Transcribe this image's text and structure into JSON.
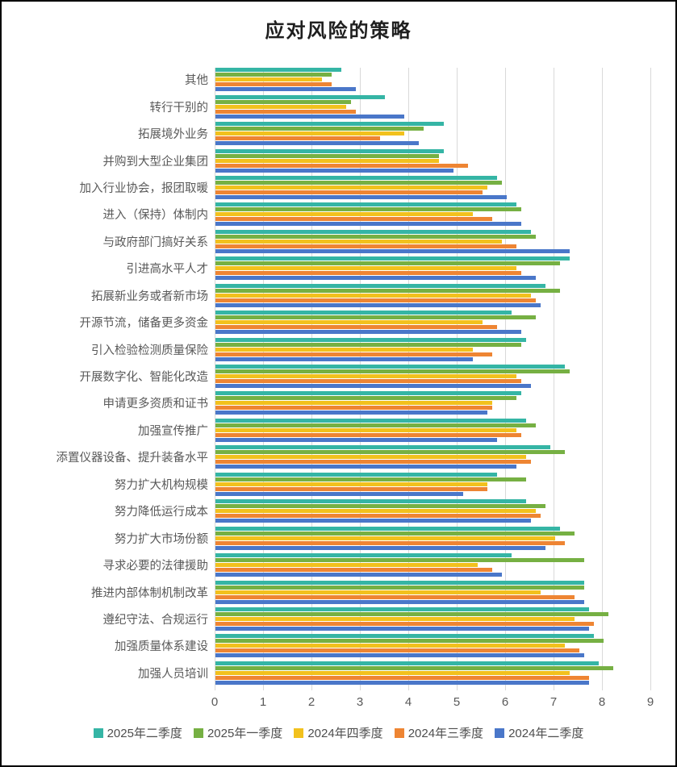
{
  "page": {
    "title": "应对风险的策略"
  },
  "chart_data": {
    "type": "bar",
    "orientation": "horizontal",
    "title": "应对风险的策略",
    "xlabel": "",
    "ylabel": "",
    "xlim": [
      0,
      9
    ],
    "x_ticks": [
      0,
      1,
      2,
      3,
      4,
      5,
      6,
      7,
      8,
      9
    ],
    "grid": true,
    "legend_position": "bottom",
    "categories_top_to_bottom": [
      "其他",
      "转行干别的",
      "拓展境外业务",
      "并购到大型企业集团",
      "加入行业协会，报团取暖",
      "进入（保持）体制内",
      "与政府部门搞好关系",
      "引进高水平人才",
      "拓展新业务或者新市场",
      "开源节流，储备更多资金",
      "引入检验检测质量保险",
      "开展数字化、智能化改造",
      "申请更多资质和证书",
      "加强宣传推广",
      "添置仪器设备、提升装备水平",
      "努力扩大机构规模",
      "努力降低运行成本",
      "努力扩大市场份额",
      "寻求必要的法律援助",
      "推进内部体制机制改革",
      "遵纪守法、合规运行",
      "加强质量体系建设",
      "加强人员培训"
    ],
    "series": [
      {
        "name": "2025年二季度",
        "color": "#35B5A5",
        "values": [
          2.6,
          3.5,
          4.7,
          4.7,
          5.8,
          6.2,
          6.5,
          7.3,
          6.8,
          6.1,
          6.4,
          7.2,
          6.3,
          6.4,
          6.9,
          5.8,
          6.4,
          7.1,
          6.1,
          7.6,
          7.7,
          7.8,
          7.9
        ]
      },
      {
        "name": "2025年一季度",
        "color": "#76B043",
        "values": [
          2.4,
          2.8,
          4.3,
          4.6,
          5.9,
          6.3,
          6.6,
          7.1,
          7.1,
          6.6,
          6.3,
          7.3,
          6.2,
          6.6,
          7.2,
          6.4,
          6.8,
          7.4,
          7.6,
          7.6,
          8.1,
          8.0,
          8.2
        ]
      },
      {
        "name": "2024年四季度",
        "color": "#F2C11D",
        "values": [
          2.2,
          2.7,
          3.9,
          4.6,
          5.6,
          5.3,
          5.9,
          6.2,
          6.5,
          5.5,
          5.3,
          6.2,
          5.7,
          6.2,
          6.4,
          5.6,
          6.6,
          7.0,
          5.4,
          6.7,
          7.4,
          7.2,
          7.3
        ]
      },
      {
        "name": "2024年三季度",
        "color": "#EE8533",
        "values": [
          2.4,
          2.9,
          3.4,
          5.2,
          5.5,
          5.7,
          6.2,
          6.3,
          6.6,
          5.8,
          5.7,
          6.3,
          5.7,
          6.3,
          6.5,
          5.6,
          6.7,
          7.2,
          5.7,
          7.4,
          7.8,
          7.5,
          7.7
        ]
      },
      {
        "name": "2024年二季度",
        "color": "#4A77C9",
        "values": [
          2.9,
          3.9,
          4.2,
          4.9,
          6.0,
          6.3,
          7.3,
          6.6,
          6.7,
          6.3,
          5.3,
          6.5,
          5.6,
          5.8,
          6.2,
          5.1,
          6.5,
          6.8,
          5.9,
          7.6,
          7.7,
          7.6,
          7.7
        ]
      }
    ],
    "colors": {
      "grid": "#d9d9d9",
      "axis_text": "#595959",
      "title_text": "#1f1f1f"
    }
  }
}
